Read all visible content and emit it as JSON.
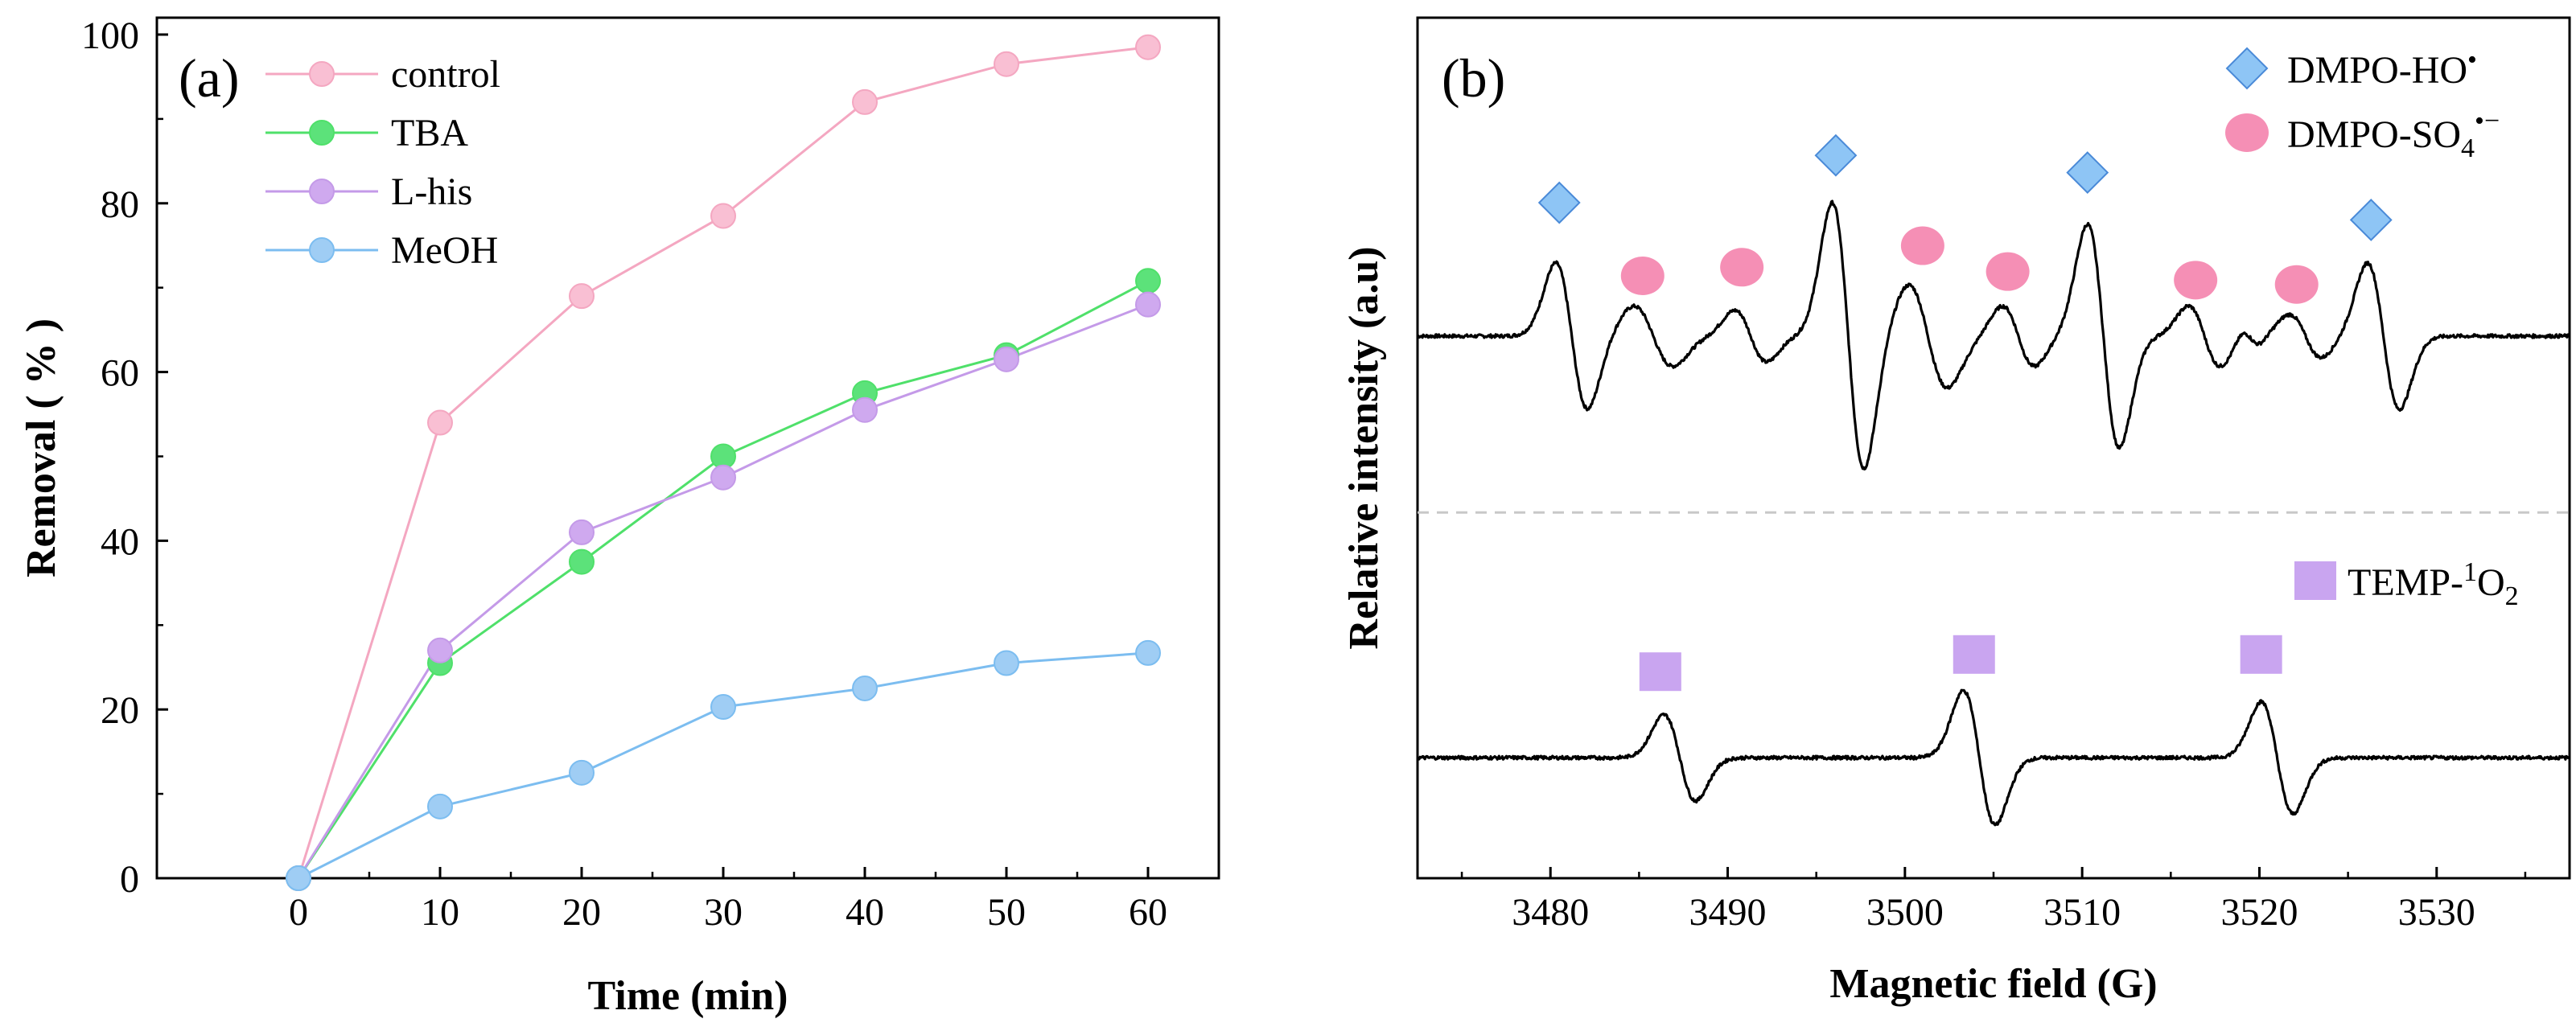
{
  "chart_data": [
    {
      "type": "line",
      "panel_label": "(a)",
      "xlabel": "Time (min)",
      "ylabel": "Removal ( % )",
      "xlim": [
        -10,
        65
      ],
      "ylim": [
        0,
        102
      ],
      "xticks": [
        0,
        10,
        20,
        30,
        40,
        50,
        60
      ],
      "yticks": [
        0,
        20,
        40,
        60,
        80,
        100
      ],
      "legend_position": "top-left",
      "x": [
        0,
        10,
        20,
        30,
        40,
        50,
        60
      ],
      "series": [
        {
          "name": "control",
          "color": "#f4a7c1",
          "fill": "#f9bfd3",
          "values": [
            0,
            54,
            69,
            78.5,
            92,
            96.5,
            98.5
          ]
        },
        {
          "name": "TBA",
          "color": "#4fe06a",
          "fill": "#5ce27a",
          "values": [
            0,
            25.5,
            37.5,
            50,
            57.5,
            62,
            70.8
          ]
        },
        {
          "name": "L-his",
          "color": "#c49ae8",
          "fill": "#cfa9ef",
          "values": [
            0,
            27,
            41,
            47.5,
            55.5,
            61.5,
            68
          ]
        },
        {
          "name": "MeOH",
          "color": "#7cbdf0",
          "fill": "#9fcdf4",
          "values": [
            0,
            8.5,
            12.5,
            20.3,
            22.5,
            25.5,
            26.7
          ]
        }
      ]
    },
    {
      "type": "line",
      "panel_label": "(b)",
      "xlabel": "Magnetic field (G)",
      "ylabel": "Relative intensity (a.u)",
      "xlim": [
        3472.5,
        3537.5
      ],
      "xticks": [
        3480,
        3490,
        3500,
        3510,
        3520,
        3530
      ],
      "divider": "dashed",
      "legend": [
        {
          "name": "DMPO-HO",
          "sup": "•",
          "sub": "",
          "marker": "diamond",
          "color": "#8ec5f5"
        },
        {
          "name": "DMPO-SO",
          "sub": "4",
          "sup": "•−",
          "marker": "circle",
          "color": "#f58fb5"
        },
        {
          "name": "TEMP-",
          "sup": "1",
          "sub": "2",
          "prefix_end": "O",
          "marker": "square",
          "color": "#c9a5f0"
        }
      ],
      "spectra": [
        {
          "name": "DMPO",
          "baseline_level": 0.63,
          "lines": [
            {
              "field": 3481.2,
              "amp": 0.085,
              "width": 0.9
            },
            {
              "field": 3485.8,
              "amp": 0.035,
              "width": 1.1
            },
            {
              "field": 3491.3,
              "amp": 0.03,
              "width": 0.9
            },
            {
              "field": 3496.8,
              "amp": 0.155,
              "width": 0.9
            },
            {
              "field": 3501.3,
              "amp": 0.06,
              "width": 1.1
            },
            {
              "field": 3506.4,
              "amp": 0.035,
              "width": 0.9
            },
            {
              "field": 3511.2,
              "amp": 0.13,
              "width": 0.9
            },
            {
              "field": 3516.9,
              "amp": 0.035,
              "width": 0.9
            },
            {
              "field": 3519.5,
              "amp": 0.01,
              "width": 0.5
            },
            {
              "field": 3522.6,
              "amp": 0.025,
              "width": 0.9
            },
            {
              "field": 3527.0,
              "amp": 0.085,
              "width": 0.9
            }
          ],
          "markers": [
            {
              "type": "diamond",
              "field": 3480.5,
              "level": 0.785
            },
            {
              "type": "circle",
              "field": 3485.2,
              "level": 0.7
            },
            {
              "type": "circle",
              "field": 3490.8,
              "level": 0.71
            },
            {
              "type": "diamond",
              "field": 3496.1,
              "level": 0.84
            },
            {
              "type": "circle",
              "field": 3501.0,
              "level": 0.735
            },
            {
              "type": "circle",
              "field": 3505.8,
              "level": 0.705
            },
            {
              "type": "diamond",
              "field": 3510.3,
              "level": 0.82
            },
            {
              "type": "circle",
              "field": 3516.4,
              "level": 0.695
            },
            {
              "type": "circle",
              "field": 3522.1,
              "level": 0.69
            },
            {
              "type": "diamond",
              "field": 3526.3,
              "level": 0.765
            }
          ]
        },
        {
          "name": "TEMP",
          "baseline_level": 0.14,
          "lines": [
            {
              "field": 3487.3,
              "amp": 0.05,
              "width": 0.9
            },
            {
              "field": 3504.2,
              "amp": 0.078,
              "width": 0.9
            },
            {
              "field": 3521.0,
              "amp": 0.065,
              "width": 0.9
            }
          ],
          "markers": [
            {
              "type": "square",
              "field": 3486.2,
              "level": 0.24
            },
            {
              "type": "square",
              "field": 3503.9,
              "level": 0.26
            },
            {
              "type": "square",
              "field": 3520.1,
              "level": 0.26
            }
          ]
        }
      ],
      "divider_level": 0.425
    }
  ]
}
